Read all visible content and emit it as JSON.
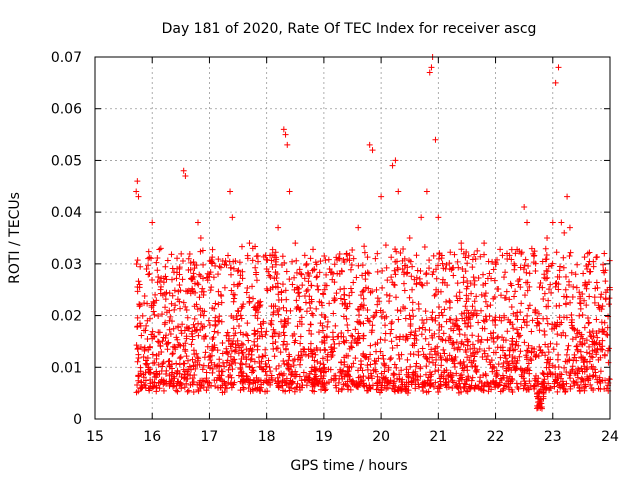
{
  "chart_data": {
    "type": "scatter",
    "title": "Day 181 of 2020, Rate Of TEC Index for receiver ascg",
    "xlabel": "GPS time / hours",
    "ylabel": "ROTI / TECUs",
    "xlim": [
      15,
      24
    ],
    "ylim": [
      0,
      0.07
    ],
    "x_ticks": [
      15,
      16,
      17,
      18,
      19,
      20,
      21,
      22,
      23,
      24
    ],
    "x_tick_labels": [
      "15",
      "16",
      "17",
      "18",
      "19",
      "20",
      "21",
      "22",
      "23",
      "24"
    ],
    "y_ticks": [
      0,
      0.01,
      0.02,
      0.03,
      0.04,
      0.05,
      0.06,
      0.07
    ],
    "y_tick_labels": [
      "0",
      "0.01",
      "0.02",
      "0.03",
      "0.04",
      "0.05",
      "0.06",
      "0.07"
    ],
    "grid": true,
    "marker": "+",
    "series_color": "#ff0000",
    "series": [
      {
        "name": "ROTI",
        "x": [
          15.72,
          15.74,
          15.76,
          15.78,
          15.8,
          15.85,
          15.9,
          15.95,
          16.0,
          16.05,
          16.1,
          16.15,
          16.2,
          16.25,
          16.3,
          16.35,
          16.4,
          16.5,
          16.55,
          16.58,
          16.6,
          16.7,
          16.75,
          16.8,
          16.85,
          16.9,
          16.95,
          17.0,
          17.05,
          17.1,
          17.15,
          17.2,
          17.3,
          17.36,
          17.4,
          17.5,
          17.6,
          17.7,
          17.8,
          17.9,
          18.0,
          18.1,
          18.2,
          18.3,
          18.33,
          18.36,
          18.4,
          18.45,
          18.5,
          18.6,
          18.7,
          18.8,
          18.9,
          19.0,
          19.1,
          19.2,
          19.3,
          19.4,
          19.5,
          19.6,
          19.7,
          19.8,
          19.85,
          19.9,
          20.0,
          20.1,
          20.2,
          20.25,
          20.3,
          20.4,
          20.5,
          20.6,
          20.7,
          20.8,
          20.85,
          20.88,
          20.9,
          20.95,
          21.0,
          21.1,
          21.2,
          21.3,
          21.4,
          21.5,
          21.6,
          21.7,
          21.8,
          21.9,
          22.0,
          22.1,
          22.2,
          22.3,
          22.4,
          22.5,
          22.55,
          22.6,
          22.7,
          22.8,
          22.85,
          22.9,
          23.0,
          23.05,
          23.1,
          23.15,
          23.2,
          23.25,
          23.3,
          23.4,
          23.5,
          23.6,
          23.7,
          23.8,
          23.9,
          24.0
        ],
        "y": [
          0.044,
          0.046,
          0.043,
          0.026,
          0.018,
          0.012,
          0.029,
          0.009,
          0.038,
          0.024,
          0.015,
          0.033,
          0.011,
          0.027,
          0.019,
          0.009,
          0.022,
          0.012,
          0.048,
          0.047,
          0.016,
          0.025,
          0.011,
          0.038,
          0.035,
          0.02,
          0.009,
          0.028,
          0.014,
          0.018,
          0.008,
          0.024,
          0.013,
          0.044,
          0.039,
          0.026,
          0.012,
          0.034,
          0.02,
          0.01,
          0.029,
          0.016,
          0.037,
          0.056,
          0.055,
          0.053,
          0.044,
          0.026,
          0.034,
          0.013,
          0.03,
          0.012,
          0.025,
          0.009,
          0.029,
          0.018,
          0.011,
          0.032,
          0.016,
          0.037,
          0.022,
          0.053,
          0.052,
          0.031,
          0.043,
          0.024,
          0.049,
          0.05,
          0.044,
          0.028,
          0.035,
          0.017,
          0.039,
          0.044,
          0.067,
          0.068,
          0.07,
          0.054,
          0.039,
          0.009,
          0.029,
          0.012,
          0.034,
          0.021,
          0.008,
          0.016,
          0.034,
          0.011,
          0.03,
          0.019,
          0.032,
          0.012,
          0.026,
          0.041,
          0.038,
          0.022,
          0.012,
          0.003,
          0.028,
          0.035,
          0.038,
          0.065,
          0.068,
          0.038,
          0.036,
          0.043,
          0.037,
          0.028,
          0.012,
          0.029,
          0.017,
          0.022,
          0.032,
          0.025
        ],
        "density_y_range": [
          0.005,
          0.032
        ],
        "density_x_range": [
          15.72,
          24.0
        ]
      }
    ]
  }
}
